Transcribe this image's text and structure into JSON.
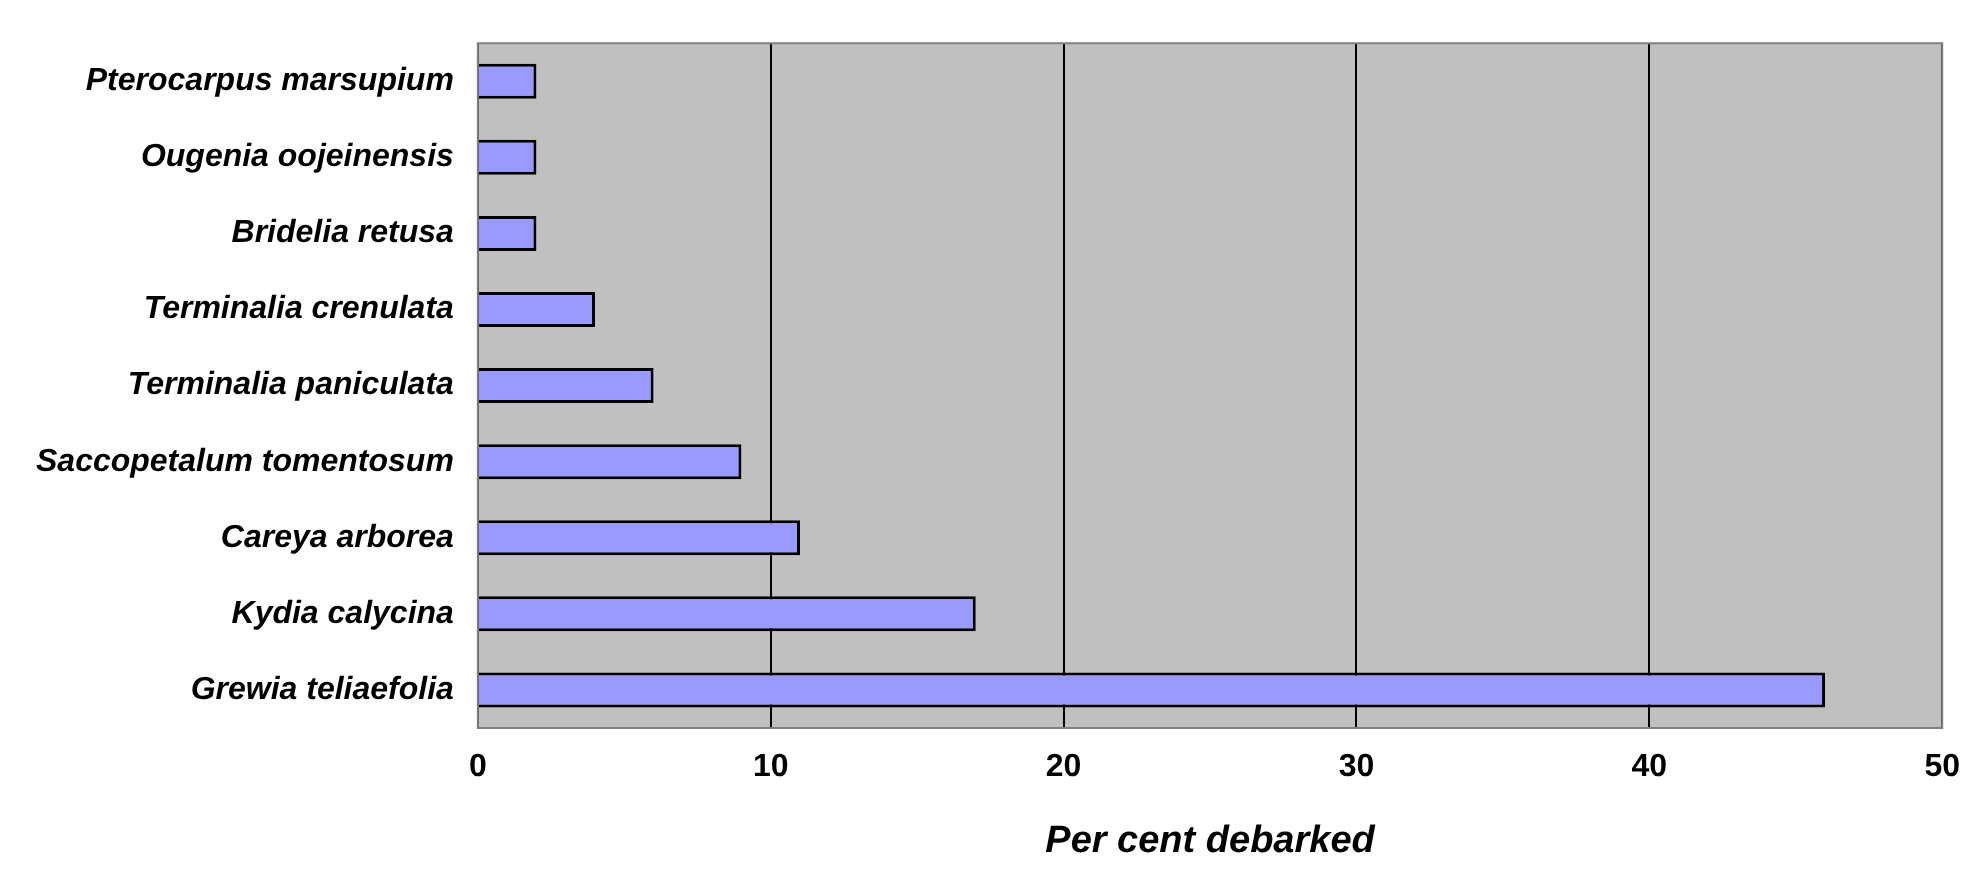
{
  "chart_data": {
    "type": "bar",
    "orientation": "horizontal",
    "xlabel": "Per cent debarked",
    "categories": [
      "Pterocarpus marsupium",
      "Ougenia oojeinensis",
      "Bridelia retusa",
      "Terminalia crenulata",
      "Terminalia paniculata",
      "Saccopetalum tomentosum",
      "Careya arborea",
      "Kydia calycina",
      "Grewia teliaefolia"
    ],
    "values": [
      2,
      2,
      2,
      4,
      6,
      9,
      11,
      17,
      46
    ],
    "color": "#9999ff",
    "xlim": [
      0,
      50
    ],
    "xticks": [
      0,
      10,
      20,
      30,
      40,
      50
    ],
    "grid": "x",
    "legend": false
  }
}
